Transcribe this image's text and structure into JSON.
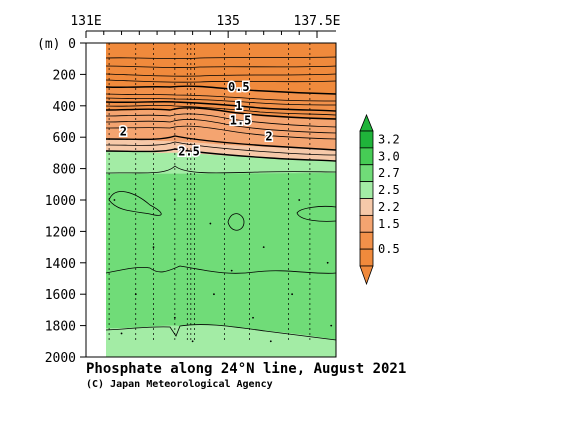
{
  "chart_data": {
    "type": "area",
    "title": "Phosphate along 24°N line, August 2021",
    "credit": "(C) Japan Meteorological Agency",
    "xlabel": "",
    "ylabel": "(m)",
    "x_tick_labels": [
      "131E",
      "135",
      "137.5E"
    ],
    "x_ticks": [
      131,
      135,
      137.5
    ],
    "xlim": [
      131,
      137.5
    ],
    "y_ticks": [
      0,
      200,
      400,
      600,
      800,
      1000,
      1200,
      1400,
      1600,
      1800,
      2000
    ],
    "ylim": [
      0,
      2000
    ],
    "y_inverted": true,
    "plot_range": {
      "x": [
        131.6,
        138.6
      ],
      "depth": [
        0,
        1900
      ]
    },
    "station_lons": [
      131.65,
      132.4,
      132.9,
      133.5,
      133.85,
      133.95,
      134.05,
      134.9,
      135.6,
      136.7,
      137.3
    ],
    "contour_labels": [
      {
        "text": "0.5",
        "lon": 135.3,
        "depth": 280
      },
      {
        "text": "1",
        "lon": 135.3,
        "depth": 400
      },
      {
        "text": "1.5",
        "lon": 135.35,
        "depth": 495
      },
      {
        "text": "2",
        "lon": 132.05,
        "depth": 565
      },
      {
        "text": "2",
        "lon": 136.15,
        "depth": 595
      },
      {
        "text": "2.5",
        "lon": 133.9,
        "depth": 690
      }
    ],
    "colorbar": {
      "ticks": [
        "3.2",
        "3.0",
        "2.7",
        "2.5",
        "2.2",
        "1.5",
        "0.5"
      ],
      "colors": [
        "#1fb43a",
        "#46cc55",
        "#70dc78",
        "#a3eca5",
        "#f6c9a9",
        "#f4a470",
        "#f2914a",
        "#f08a3c"
      ]
    },
    "layers": [
      {
        "level": "< 0.5",
        "color": "#f08a3c"
      },
      {
        "level": "0.5-1.5",
        "color": "#f2914a"
      },
      {
        "level": "1.5-2.2",
        "color": "#f4a470"
      },
      {
        "level": "2.2-2.5",
        "color": "#f6c9a9"
      },
      {
        "level": "2.5-2.7",
        "color": "#a3eca5"
      },
      {
        "level": "2.7-3.0",
        "color": "#70dc78"
      },
      {
        "level": "3.0-3.2",
        "color": "#46cc55"
      }
    ]
  }
}
